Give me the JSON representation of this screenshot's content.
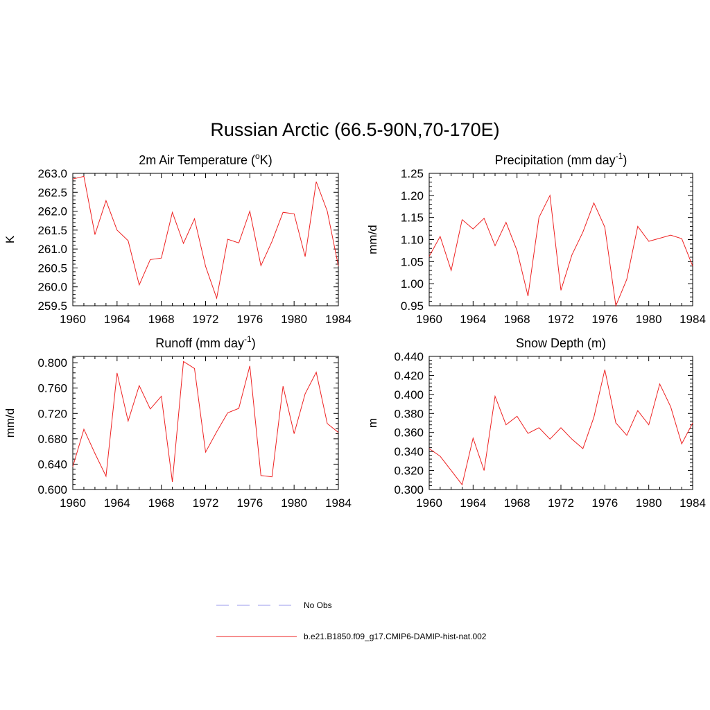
{
  "title": "Russian Arctic (66.5-90N,70-170E)",
  "legend": [
    {
      "label": "No Obs",
      "color": "#9999ee",
      "dash": true
    },
    {
      "label": "b.e21.B1850.f09_g17.CMIP6-DAMIP-hist-nat.002",
      "color": "#ee2222",
      "dash": false
    }
  ],
  "chart_data": [
    {
      "type": "line",
      "title_main": "2m Air Temperature (",
      "title_sup": "o",
      "title_tail": "K)",
      "ylabel": "K",
      "xlim": [
        1960,
        1984
      ],
      "ylim": [
        259.5,
        263.0
      ],
      "xticks": [
        "1960",
        "1964",
        "1968",
        "1972",
        "1976",
        "1980",
        "1984"
      ],
      "yticks": [
        "259.5",
        "260.0",
        "260.5",
        "261.0",
        "261.5",
        "262.0",
        "262.5",
        "263.0"
      ],
      "series": [
        {
          "color": "#ee2222",
          "x": [
            1960,
            1961,
            1962,
            1963,
            1964,
            1965,
            1966,
            1967,
            1968,
            1969,
            1970,
            1971,
            1972,
            1973,
            1974,
            1975,
            1976,
            1977,
            1978,
            1979,
            1980,
            1981,
            1982,
            1983,
            1984
          ],
          "y": [
            262.85,
            262.92,
            261.38,
            262.28,
            261.5,
            261.22,
            260.05,
            260.72,
            260.76,
            261.97,
            261.15,
            261.8,
            260.54,
            259.7,
            261.26,
            261.16,
            262.0,
            260.56,
            261.2,
            261.97,
            261.93,
            260.8,
            262.78,
            262.0,
            260.55
          ]
        }
      ]
    },
    {
      "type": "line",
      "title_main": "Precipitation (mm day",
      "title_sup": "-1",
      "title_tail": ")",
      "ylabel": "mm/d",
      "xlim": [
        1960,
        1984
      ],
      "ylim": [
        0.95,
        1.25
      ],
      "xticks": [
        "1960",
        "1964",
        "1968",
        "1972",
        "1976",
        "1980",
        "1984"
      ],
      "yticks": [
        "0.95",
        "1.00",
        "1.05",
        "1.10",
        "1.15",
        "1.20",
        "1.25"
      ],
      "series": [
        {
          "color": "#ee2222",
          "x": [
            1960,
            1961,
            1962,
            1963,
            1964,
            1965,
            1966,
            1967,
            1968,
            1969,
            1970,
            1971,
            1972,
            1973,
            1974,
            1975,
            1976,
            1977,
            1978,
            1979,
            1980,
            1981,
            1982,
            1983,
            1984
          ],
          "y": [
            1.062,
            1.107,
            1.03,
            1.145,
            1.124,
            1.148,
            1.086,
            1.139,
            1.075,
            0.972,
            1.15,
            1.2,
            0.985,
            1.065,
            1.117,
            1.183,
            1.128,
            0.95,
            1.01,
            1.13,
            1.096,
            1.103,
            1.11,
            1.102,
            1.04
          ]
        }
      ]
    },
    {
      "type": "line",
      "title_main": "Runoff (mm day",
      "title_sup": "-1",
      "title_tail": ")",
      "ylabel": "mm/d",
      "xlim": [
        1960,
        1984
      ],
      "ylim": [
        0.6,
        0.81
      ],
      "xticks": [
        "1960",
        "1964",
        "1968",
        "1972",
        "1976",
        "1980",
        "1984"
      ],
      "yticks": [
        "0.600",
        "0.640",
        "0.680",
        "0.720",
        "0.760",
        "0.800"
      ],
      "series": [
        {
          "color": "#ee2222",
          "x": [
            1960,
            1961,
            1962,
            1963,
            1964,
            1965,
            1966,
            1967,
            1968,
            1969,
            1970,
            1971,
            1972,
            1973,
            1974,
            1975,
            1976,
            1977,
            1978,
            1979,
            1980,
            1981,
            1982,
            1983,
            1984
          ],
          "y": [
            0.636,
            0.695,
            0.657,
            0.621,
            0.784,
            0.708,
            0.764,
            0.727,
            0.747,
            0.612,
            0.802,
            0.791,
            0.659,
            0.691,
            0.721,
            0.728,
            0.795,
            0.622,
            0.62,
            0.763,
            0.688,
            0.751,
            0.785,
            0.704,
            0.69
          ]
        }
      ]
    },
    {
      "type": "line",
      "title_main": "Snow Depth (m)",
      "title_sup": "",
      "title_tail": "",
      "ylabel": "m",
      "xlim": [
        1960,
        1984
      ],
      "ylim": [
        0.3,
        0.44
      ],
      "xticks": [
        "1960",
        "1964",
        "1968",
        "1972",
        "1976",
        "1980",
        "1984"
      ],
      "yticks": [
        "0.300",
        "0.320",
        "0.340",
        "0.360",
        "0.380",
        "0.400",
        "0.420",
        "0.440"
      ],
      "series": [
        {
          "color": "#ee2222",
          "x": [
            1960,
            1961,
            1962,
            1963,
            1964,
            1965,
            1966,
            1967,
            1968,
            1969,
            1970,
            1971,
            1972,
            1973,
            1974,
            1975,
            1976,
            1977,
            1978,
            1979,
            1980,
            1981,
            1982,
            1983,
            1984
          ],
          "y": [
            0.343,
            0.335,
            0.32,
            0.305,
            0.354,
            0.32,
            0.398,
            0.368,
            0.377,
            0.359,
            0.365,
            0.353,
            0.365,
            0.353,
            0.343,
            0.376,
            0.426,
            0.37,
            0.357,
            0.383,
            0.368,
            0.411,
            0.387,
            0.348,
            0.37
          ]
        }
      ]
    }
  ]
}
